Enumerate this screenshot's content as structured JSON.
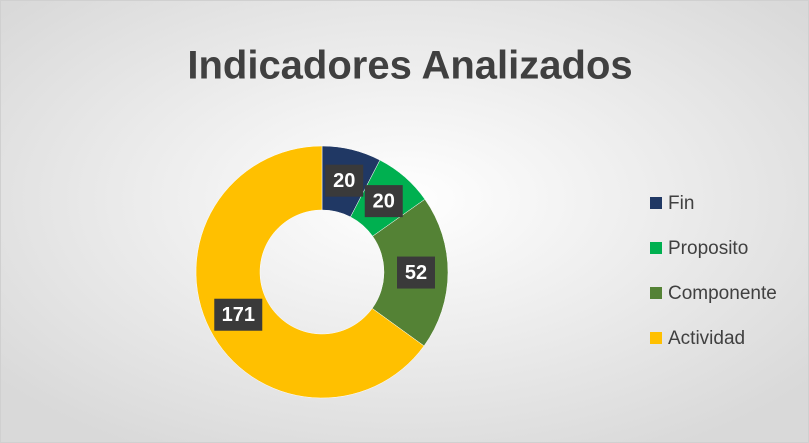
{
  "chart_data": {
    "type": "donut",
    "title": "Indicadores Analizados",
    "categories": [
      "Fin",
      "Proposito",
      "Componente",
      "Actividad"
    ],
    "values": [
      20,
      20,
      52,
      171
    ],
    "colors": [
      "#203864",
      "#00b050",
      "#548235",
      "#ffc000"
    ],
    "legend": "right"
  }
}
